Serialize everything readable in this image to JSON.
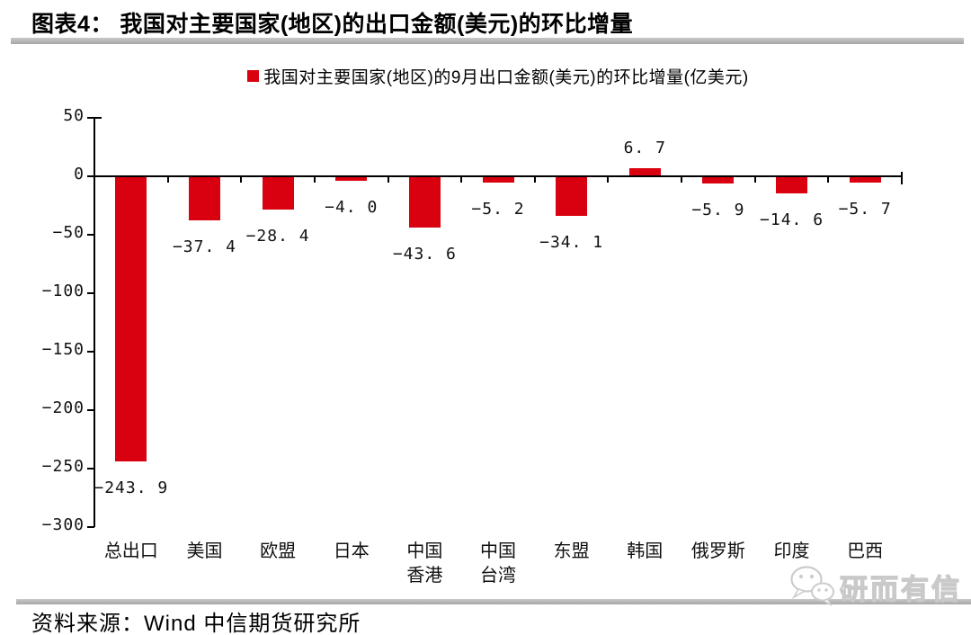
{
  "header": {
    "title": "图表4： 我国对主要国家(地区)的出口金额(美元)的环比增量"
  },
  "chart_data": {
    "type": "bar",
    "title": "我国对主要国家(地区)的出口金额(美元)的环比增量",
    "legend": [
      "我国对主要国家(地区)的9月出口金额(美元)的环比增量(亿美元)"
    ],
    "legend_position": "top",
    "categories": [
      "总出口",
      "美国",
      "欧盟",
      "日本",
      "中国\n香港",
      "中国\n台湾",
      "东盟",
      "韩国",
      "俄罗斯",
      "印度",
      "巴西"
    ],
    "values": [
      -243.9,
      -37.4,
      -28.4,
      -4.0,
      -43.6,
      -5.2,
      -34.1,
      6.7,
      -5.9,
      -14.6,
      -5.7
    ],
    "xlabel": "",
    "ylabel": "",
    "ylim": [
      -300,
      50
    ],
    "yticks": [
      50,
      0,
      -50,
      -100,
      -150,
      -200,
      -250,
      -300
    ],
    "grid": false,
    "bar_color": "#d9000f",
    "axis_color": "#000000",
    "value_labels_shown": true
  },
  "footer": {
    "source": "资料来源：Wind 中信期货研究所"
  },
  "watermark": {
    "text": "研而有信",
    "icon": "wechat-icon"
  }
}
